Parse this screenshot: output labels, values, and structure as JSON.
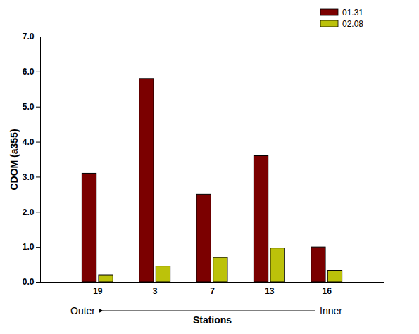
{
  "chart_data": {
    "type": "bar",
    "categories": [
      "19",
      "3",
      "7",
      "13",
      "16"
    ],
    "series": [
      {
        "name": "01.31",
        "color": "#7b0000",
        "values": [
          3.1,
          5.8,
          2.5,
          3.6,
          1.0
        ]
      },
      {
        "name": "02.08",
        "color": "#bcc20a",
        "values": [
          0.2,
          0.45,
          0.7,
          0.97,
          0.33
        ]
      }
    ],
    "x_label": "Stations",
    "y_label": "CDOM (a355)",
    "annotations": [
      "Outer",
      "Inner"
    ],
    "ylim": [
      0,
      7
    ],
    "yticks": [
      0,
      1,
      2,
      3,
      4,
      5,
      6,
      7
    ],
    "legend": "top-right",
    "grid": false
  }
}
